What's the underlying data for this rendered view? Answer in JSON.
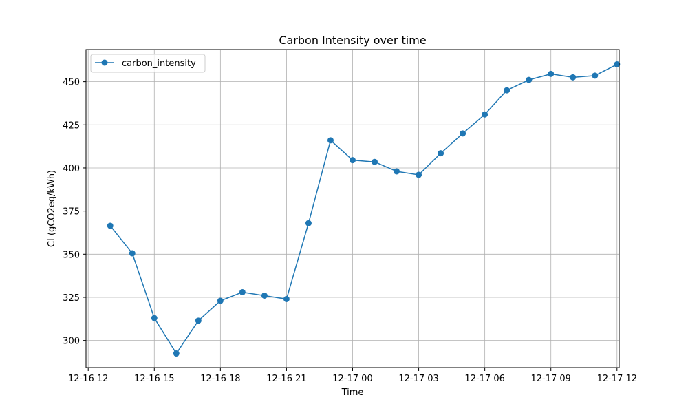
{
  "chart_data": {
    "type": "line",
    "title": "Carbon Intensity over time",
    "xlabel": "Time",
    "ylabel": "CI (gCO2eq/kWh)",
    "x_tick_labels": [
      "12-16 12",
      "12-16 15",
      "12-16 18",
      "12-16 21",
      "12-17 00",
      "12-17 03",
      "12-17 06",
      "12-17 09",
      "12-17 12"
    ],
    "x_ticks": [
      "2023-12-16 12:00",
      "2023-12-16 15:00",
      "2023-12-16 18:00",
      "2023-12-16 21:00",
      "2023-12-17 00:00",
      "2023-12-17 03:00",
      "2023-12-17 06:00",
      "2023-12-17 09:00",
      "2023-12-17 12:00"
    ],
    "xlim": [
      "2023-12-16 11:54",
      "2023-12-17 12:06"
    ],
    "y_ticks": [
      300,
      325,
      350,
      375,
      400,
      425,
      450
    ],
    "ylim": [
      284.3,
      468.6
    ],
    "grid": true,
    "legend_position": "top-left",
    "series": [
      {
        "name": "carbon_intensity",
        "color": "#1f77b4",
        "marker": "circle",
        "x": [
          "2023-12-16 13:00",
          "2023-12-16 14:00",
          "2023-12-16 15:00",
          "2023-12-16 16:00",
          "2023-12-16 17:00",
          "2023-12-16 18:00",
          "2023-12-16 19:00",
          "2023-12-16 20:00",
          "2023-12-16 21:00",
          "2023-12-16 22:00",
          "2023-12-16 23:00",
          "2023-12-17 00:00",
          "2023-12-17 01:00",
          "2023-12-17 02:00",
          "2023-12-17 03:00",
          "2023-12-17 04:00",
          "2023-12-17 05:00",
          "2023-12-17 06:00",
          "2023-12-17 07:00",
          "2023-12-17 08:00",
          "2023-12-17 09:00",
          "2023-12-17 10:00",
          "2023-12-17 11:00",
          "2023-12-17 12:00"
        ],
        "values": [
          366.5,
          350.5,
          313,
          292.5,
          311.5,
          323,
          328,
          326,
          324,
          368,
          416,
          404.5,
          403.5,
          398,
          396,
          408.5,
          420,
          431,
          445,
          451,
          454.5,
          452.5,
          453.5,
          460
        ]
      }
    ]
  }
}
